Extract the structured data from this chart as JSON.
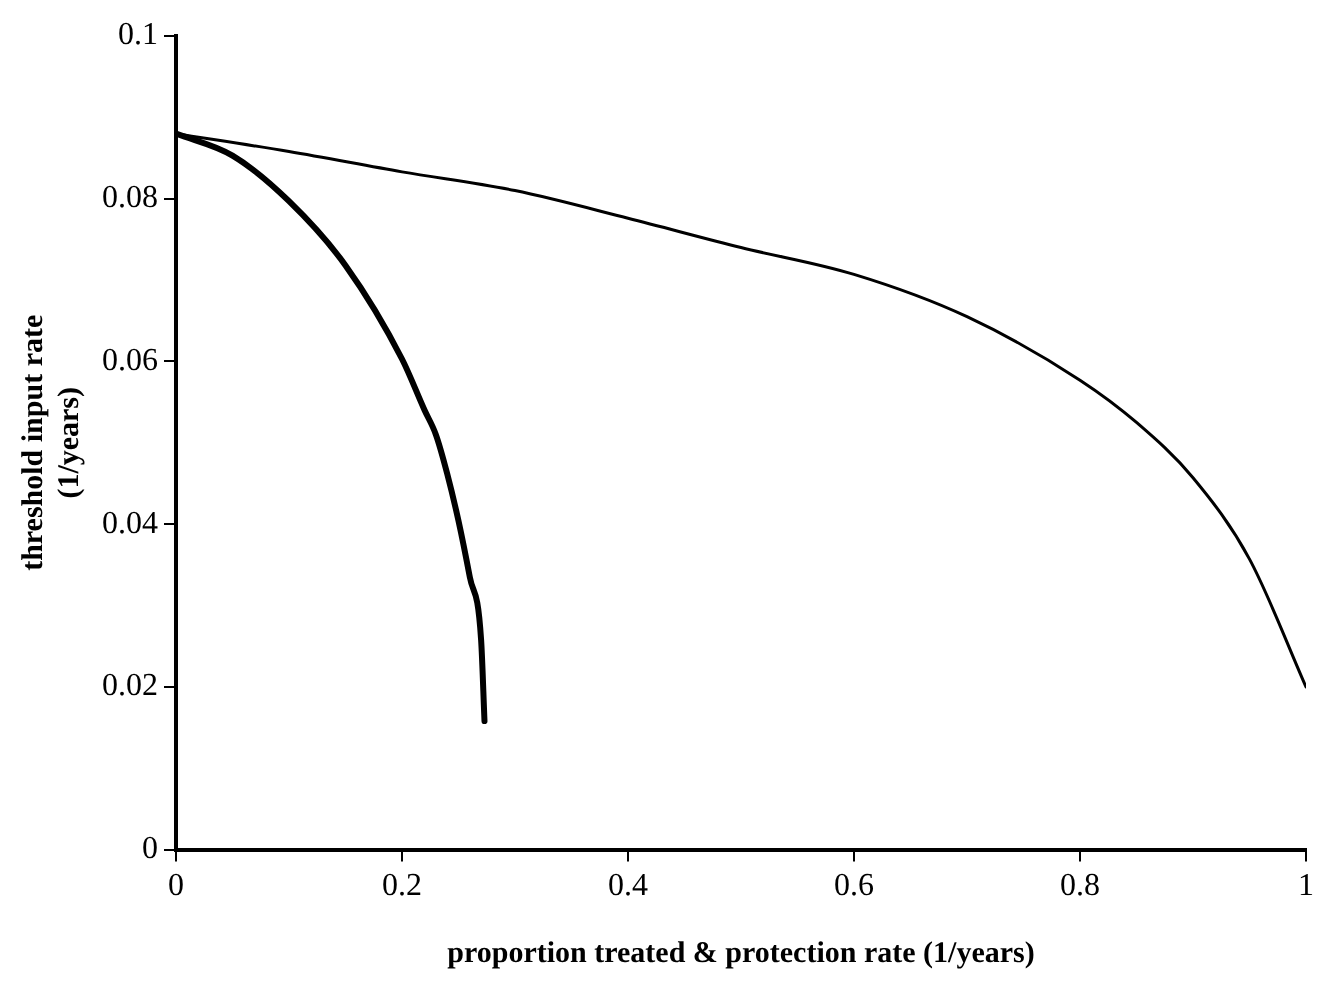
{
  "chart_data": {
    "type": "line",
    "xlabel": "proportion treated & protection rate (1/years)",
    "ylabel": "threshold input rate (1/years)",
    "xlim": [
      0,
      1
    ],
    "xticks": [
      0,
      0.2,
      0.4,
      0.6,
      0.8,
      1
    ],
    "ylim": [
      0,
      0.1
    ],
    "yticks": [
      0,
      0.02,
      0.04,
      0.06,
      0.08,
      0.1
    ],
    "grid": false,
    "legend": false,
    "marker": "none",
    "line_style": "solid",
    "series": [
      {
        "color": "#000000",
        "x": [
          0,
          0.1,
          0.2,
          0.3,
          0.4,
          0.5,
          0.6,
          0.7,
          0.8,
          0.85,
          0.9,
          0.95,
          1
        ],
        "values": [
          0.088,
          0.0858,
          0.0833,
          0.081,
          0.0776,
          0.074,
          0.0707,
          0.0655,
          0.0577,
          0.0525,
          0.0457,
          0.0357,
          0.02
        ]
      },
      {
        "color": "#000000",
        "x": [
          0,
          0.05,
          0.1,
          0.15,
          0.2,
          0.22,
          0.23,
          0.24,
          0.25,
          0.26,
          0.27,
          0.273
        ],
        "values": [
          0.088,
          0.0853,
          0.0797,
          0.0718,
          0.0603,
          0.054,
          0.051,
          0.0462,
          0.0404,
          0.0335,
          0.0258,
          0.0158
        ]
      }
    ]
  }
}
